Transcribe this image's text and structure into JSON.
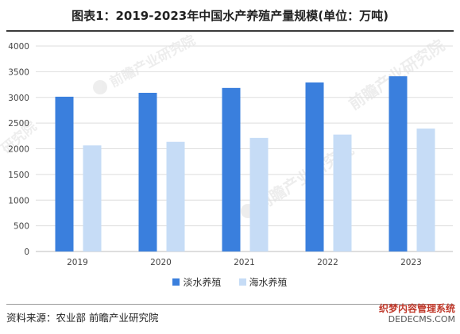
{
  "title": "图表1：2019-2023年中国水产养殖产量规模(单位：万吨)",
  "source": "资料来源：农业部 前瞻产业研究院",
  "watermark": {
    "logo_text": "前瞻产业研究院",
    "site_name": "织梦内容管理系统",
    "site_url": "DEDECMS.COM"
  },
  "colors": {
    "series1": "#3a7fdd",
    "series2": "#c6dcf6",
    "grid": "#dedede",
    "axis": "#bdbdbd"
  },
  "chart_data": {
    "type": "bar",
    "categories": [
      "2019",
      "2020",
      "2021",
      "2022",
      "2023"
    ],
    "series": [
      {
        "name": "淡水养殖",
        "values": [
          3013,
          3089,
          3184,
          3291,
          3411
        ]
      },
      {
        "name": "海水养殖",
        "values": [
          2065,
          2135,
          2211,
          2276,
          2393
        ]
      }
    ],
    "ylim": [
      0,
      4000
    ],
    "yticks": [
      0,
      500,
      1000,
      1500,
      2000,
      2500,
      3000,
      3500,
      4000
    ],
    "grid": true,
    "legend": "bottom-center"
  }
}
